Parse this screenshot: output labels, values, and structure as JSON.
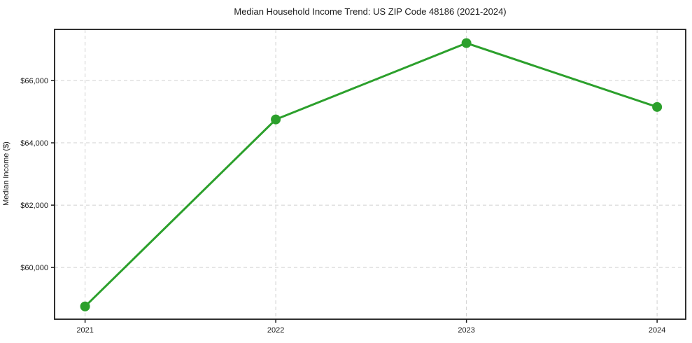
{
  "chart_data": {
    "type": "line",
    "title": "Median Household Income Trend: US ZIP Code 48186 (2021-2024)",
    "xlabel": "",
    "ylabel": "Median Income ($)",
    "categories": [
      "2021",
      "2022",
      "2023",
      "2024"
    ],
    "x": [
      2021,
      2022,
      2023,
      2024
    ],
    "series": [
      {
        "name": "Median Household Income",
        "values": [
          58750,
          64750,
          67200,
          65150
        ]
      }
    ],
    "yticks": [
      {
        "value": 60000,
        "label": "$60,000"
      },
      {
        "value": 62000,
        "label": "$62,000"
      },
      {
        "value": 64000,
        "label": "$64,000"
      },
      {
        "value": 66000,
        "label": "$66,000"
      }
    ],
    "ylim": [
      58340,
      67640
    ],
    "xlim": [
      2020.84,
      2024.15
    ],
    "grid": true,
    "grid_style": "dashed",
    "legend_position": "none",
    "colors": {
      "line": "#2ca02c",
      "marker": "#2ca02c",
      "grid": "#d0d0d0",
      "spine": "#1a1a1a",
      "background": "#ffffff",
      "text": "#1a1a1a"
    }
  }
}
